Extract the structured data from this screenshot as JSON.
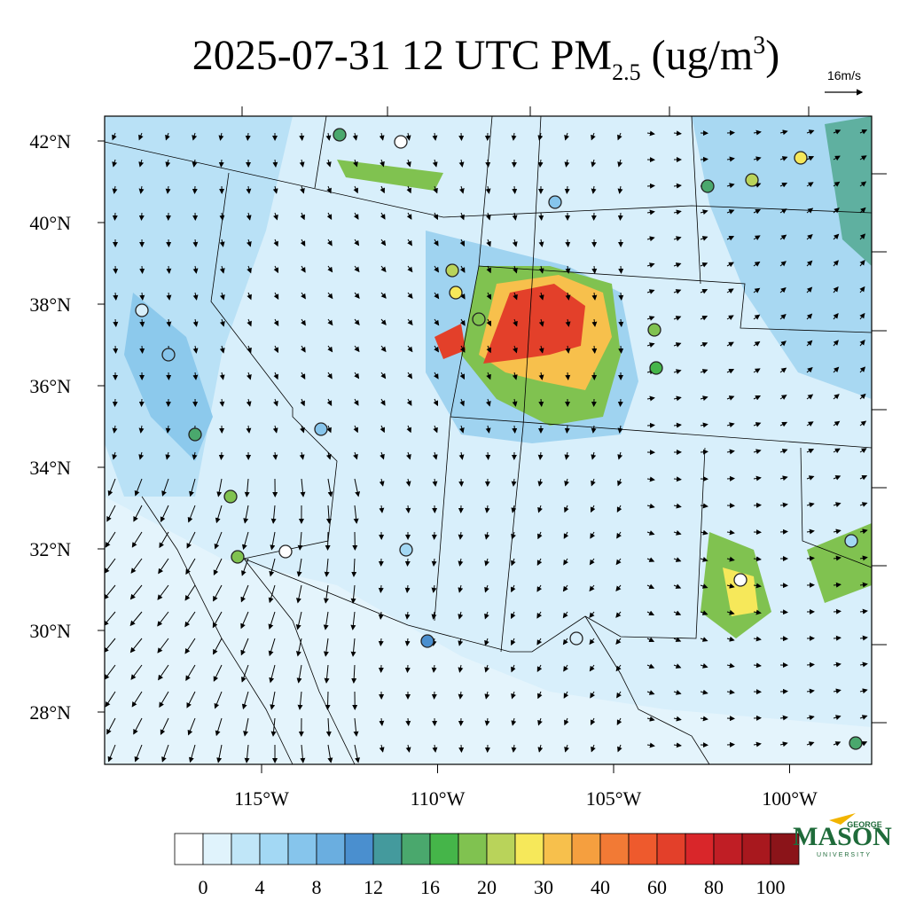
{
  "title": {
    "main": "2025-07-31 12 UTC PM",
    "sub": "2.5",
    "unit_open": " (ug/m",
    "sup": "3",
    "unit_close": ")"
  },
  "wind_reference": "16m/s",
  "lat_labels": [
    {
      "value": 42,
      "label": "42°N"
    },
    {
      "value": 40,
      "label": "40°N"
    },
    {
      "value": 38,
      "label": "38°N"
    },
    {
      "value": 36,
      "label": "36°N"
    },
    {
      "value": 34,
      "label": "34°N"
    },
    {
      "value": 32,
      "label": "32°N"
    },
    {
      "value": 30,
      "label": "30°N"
    },
    {
      "value": 28,
      "label": "28°N"
    }
  ],
  "lon_labels": [
    {
      "value": -115,
      "label": "115°W"
    },
    {
      "value": -110,
      "label": "110°W"
    },
    {
      "value": -105,
      "label": "105°W"
    },
    {
      "value": -100,
      "label": "100°W"
    }
  ],
  "colorbar": {
    "labels": [
      0,
      4,
      8,
      12,
      16,
      20,
      30,
      40,
      60,
      80,
      100
    ],
    "colors": [
      "#ffffff",
      "#e0f3fc",
      "#c0e6f8",
      "#a3d8f4",
      "#86c5ec",
      "#6aaee0",
      "#4a8fcf",
      "#449a9d",
      "#4aa86d",
      "#45b549",
      "#80c250",
      "#b9d35a",
      "#f6e85a",
      "#f7c04c",
      "#f59f3f",
      "#f27a35",
      "#ee5a2d",
      "#e3402a",
      "#d9262a",
      "#c01e25",
      "#a8181e",
      "#8b1419"
    ]
  },
  "logo": {
    "line1": "GEORGE",
    "line2": "MASON",
    "line3": "UNIVERSITY"
  }
}
